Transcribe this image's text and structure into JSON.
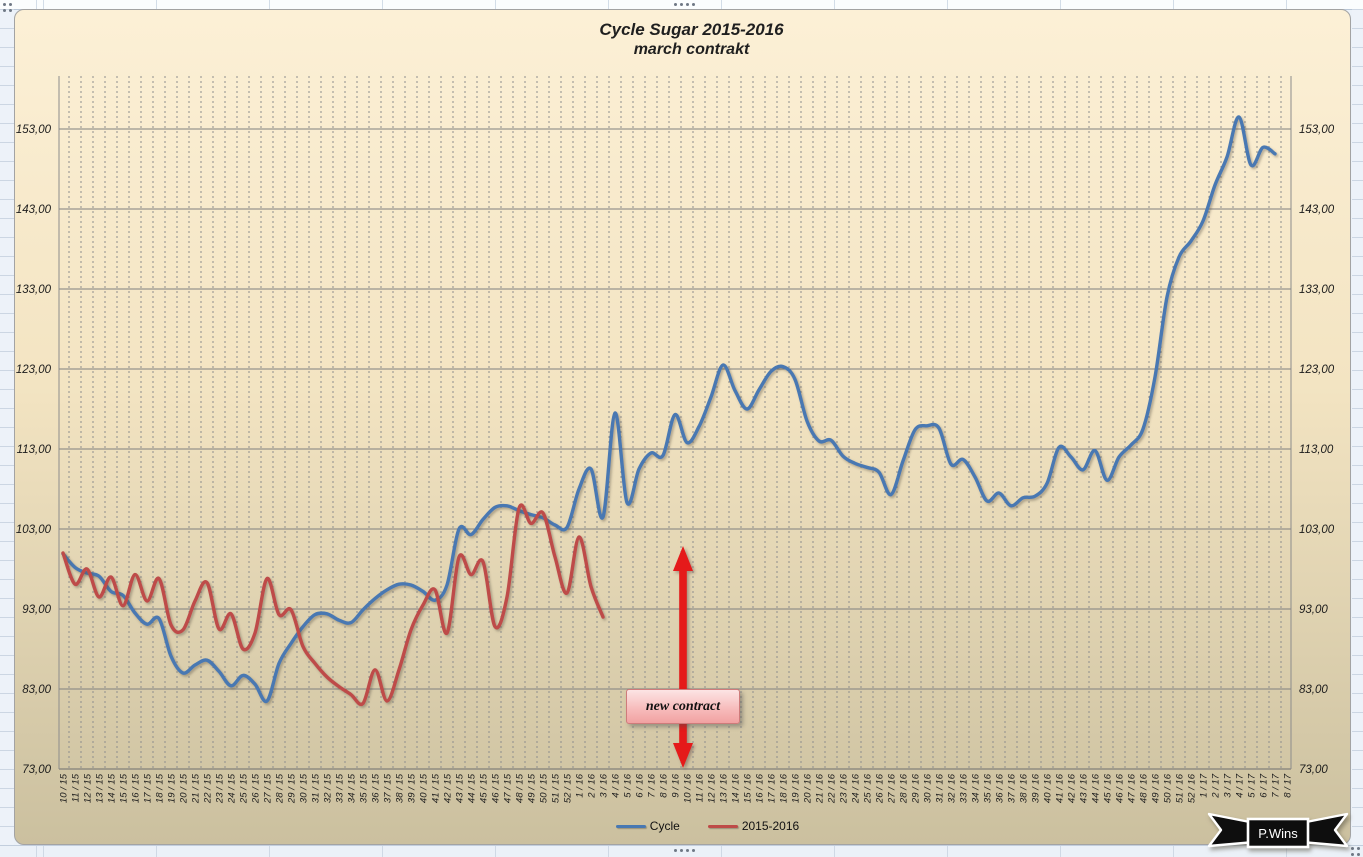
{
  "chart": {
    "title_line1": "Cycle Sugar 2015-2016",
    "title_line2": "march contrakt",
    "annotation": {
      "label": "new contract"
    },
    "brand": {
      "label": "P.Wins"
    },
    "colors": {
      "background_top": "#FCF0D6",
      "background_bottom": "#CBC09F",
      "gridline_major": "#7F7F7F",
      "gridline_dashed": "#8E8E8E",
      "arrow_red": "#E51A1A",
      "annotation_pink": "#F7BDBD"
    }
  },
  "chart_data": {
    "type": "line",
    "title": "Cycle Sugar 2015-2016 march contrakt",
    "xlabel": "",
    "ylabel": "",
    "ylim": [
      73,
      159.6
    ],
    "grid": "both",
    "legend_position": "bottom",
    "y_ticks": [
      "153,00",
      "143,00",
      "133,00",
      "123,00",
      "113,00",
      "103,00",
      "93,00",
      "83,00",
      "73,00"
    ],
    "y_tick_values": [
      153,
      143,
      133,
      123,
      113,
      103,
      93,
      83,
      73
    ],
    "x_labels": [
      "10 / 15",
      "11 / 15",
      "12 / 15",
      "13 / 15",
      "14 / 15",
      "15 / 15",
      "16 / 15",
      "17 / 15",
      "18 / 15",
      "19 / 15",
      "20 / 15",
      "21 / 15",
      "22 / 15",
      "23 / 15",
      "24 / 15",
      "25 / 15",
      "26 / 15",
      "27 / 15",
      "28 / 15",
      "29 / 15",
      "30 / 15",
      "31 / 15",
      "32 / 15",
      "33 / 15",
      "34 / 15",
      "35 / 15",
      "36 / 15",
      "37 / 15",
      "38 / 15",
      "39 / 15",
      "40 / 15",
      "41 / 15",
      "42 / 15",
      "43 / 15",
      "44 / 15",
      "45 / 15",
      "46 / 15",
      "47 / 15",
      "48 / 15",
      "49 / 15",
      "50 / 15",
      "51 / 15",
      "52 / 15",
      "1 / 16",
      "2 / 16",
      "3 / 16",
      "4 / 16",
      "5 / 16",
      "6 / 16",
      "7 / 16",
      "8 / 16",
      "9 / 16",
      "10 / 16",
      "11 / 16",
      "12 / 16",
      "13 / 16",
      "14 / 16",
      "15 / 16",
      "16 / 16",
      "17 / 16",
      "18 / 16",
      "19 / 16",
      "20 / 16",
      "21 / 16",
      "22 / 16",
      "23 / 16",
      "24 / 16",
      "25 / 16",
      "26 / 16",
      "27 / 16",
      "28 / 16",
      "29 / 16",
      "30 / 16",
      "31 / 16",
      "32 / 16",
      "33 / 16",
      "34 / 16",
      "35 / 16",
      "36 / 16",
      "37 / 16",
      "38 / 16",
      "39 / 16",
      "40 / 16",
      "41 / 16",
      "42 / 16",
      "43 / 16",
      "44 / 16",
      "45 / 16",
      "46 / 16",
      "47 / 16",
      "48 / 16",
      "49 / 16",
      "50 / 16",
      "51 / 16",
      "52 / 16",
      "1 / 17",
      "2 / 17",
      "3 / 17",
      "4 / 17",
      "5 / 17",
      "6 / 17",
      "7 / 17",
      "8 / 17"
    ],
    "series": [
      {
        "name": "Cycle",
        "color": "#4878B2",
        "values": [
          99.9,
          98.2,
          97.5,
          97.1,
          95.2,
          94.7,
          92.5,
          91.1,
          91.8,
          87.1,
          85.0,
          86.0,
          86.6,
          85.2,
          83.4,
          84.7,
          83.6,
          81.5,
          86.2,
          88.7,
          90.8,
          92.3,
          92.4,
          91.6,
          91.3,
          92.9,
          94.3,
          95.4,
          96.1,
          96.0,
          95.2,
          94.1,
          96.0,
          103.0,
          102.3,
          104.2,
          105.7,
          105.9,
          105.3,
          104.8,
          104.4,
          103.5,
          103.2,
          108.0,
          110.5,
          104.5,
          117.5,
          106.3,
          110.5,
          112.5,
          112.2,
          117.3,
          113.8,
          115.8,
          119.5,
          123.5,
          120.3,
          118.0,
          120.4,
          122.7,
          123.3,
          121.7,
          116.5,
          114.0,
          114.1,
          112.1,
          111.2,
          110.7,
          110.1,
          107.3,
          111.5,
          115.4,
          115.9,
          115.6,
          111.1,
          111.7,
          109.5,
          106.5,
          107.5,
          105.9,
          106.9,
          107.1,
          108.7,
          113.2,
          112.0,
          110.4,
          112.8,
          109.1,
          112.0,
          113.5,
          115.5,
          122.0,
          132.0,
          137.0,
          139.0,
          141.5,
          146.0,
          149.5,
          154.5,
          148.5,
          150.7,
          149.9,
          null
        ]
      },
      {
        "name": "2015-2016",
        "color": "#BE4B48",
        "values": [
          100.0,
          96.1,
          98.0,
          94.5,
          97.0,
          93.4,
          97.3,
          94.0,
          96.8,
          91.0,
          90.4,
          94.0,
          96.3,
          90.5,
          92.4,
          88.0,
          90.0,
          96.8,
          92.3,
          92.9,
          88.3,
          86.2,
          84.5,
          83.3,
          82.3,
          81.2,
          85.4,
          81.5,
          85.4,
          90.4,
          93.5,
          95.4,
          90.0,
          99.5,
          97.3,
          98.9,
          90.8,
          94.5,
          105.6,
          103.7,
          105.0,
          99.5,
          95.0,
          102.0,
          95.8,
          92.0
        ]
      }
    ],
    "annotations": [
      {
        "text": "new contract",
        "x_label": "10 / 16",
        "shape": "vertical-double-arrow"
      }
    ]
  }
}
